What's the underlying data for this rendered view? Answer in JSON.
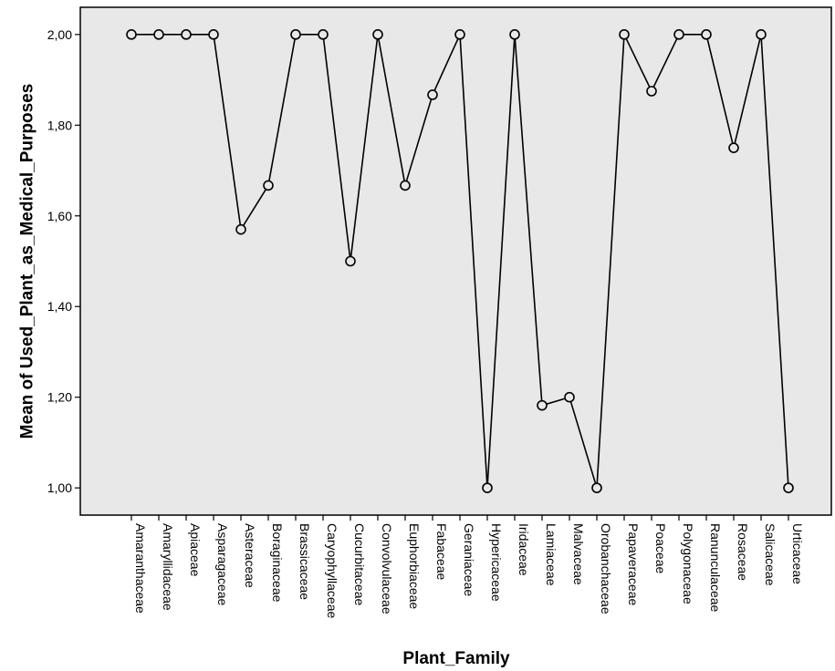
{
  "chart_data": {
    "type": "line",
    "xlabel": "Plant_Family",
    "ylabel": "Mean of Used_Plant_as_Medical_Purposes",
    "ylim": [
      0.94,
      2.06
    ],
    "yticks": [
      1.0,
      1.2,
      1.4,
      1.6,
      1.8,
      2.0
    ],
    "ytick_labels": [
      "1,00",
      "1,20",
      "1,40",
      "1,60",
      "1,80",
      "2,00"
    ],
    "grid": false,
    "marker": "open-circle",
    "colors": {
      "plot_background": "#e8e8e8",
      "line": "#000000",
      "marker_face": "#e8e8e8"
    },
    "categories": [
      "Amaranthaceae",
      "Amaryllidaceae",
      "Apiaceae",
      "Asparagaceae",
      "Asteraceae",
      "Boraginaceae",
      "Brassicaceae",
      "Caryophyllaceae",
      "Cucurbitaceae",
      "Convolvulaceae",
      "Euphorbiaceae",
      "Fabaceae",
      "Geraniaceae",
      "Hypericaceae",
      "Iridaceae",
      "Lamiaceae",
      "Malvaceae",
      "Orobanchaceae",
      "Papaveraceae",
      "Poaceae",
      "Polygonaceae",
      "Ranunculaceae",
      "Rosaceae",
      "Salicaceae",
      "Urticaceae"
    ],
    "values": [
      2.0,
      2.0,
      2.0,
      2.0,
      1.57,
      1.667,
      2.0,
      2.0,
      1.5,
      2.0,
      1.667,
      1.867,
      2.0,
      1.0,
      2.0,
      1.182,
      1.2,
      1.0,
      2.0,
      1.875,
      2.0,
      2.0,
      1.75,
      2.0,
      1.0
    ]
  }
}
